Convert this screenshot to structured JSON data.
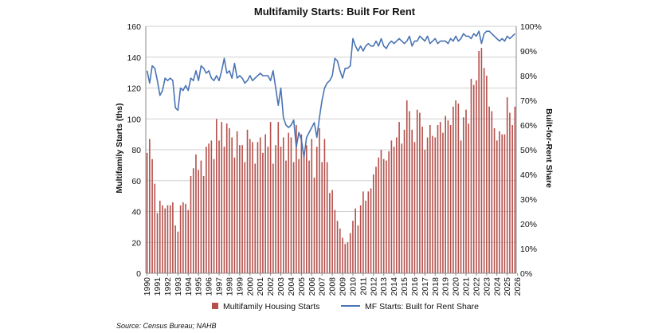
{
  "chart_data": {
    "type": "bar+line",
    "title": "Multifamily Starts: Built For Rent",
    "source": "Source: Census Bureau; NAHB",
    "ylabel": "Multifamily Starts (ths)",
    "y2label": "Built-for-Rent Share",
    "ylim": [
      0,
      160
    ],
    "yticks": [
      "0",
      "20",
      "40",
      "60",
      "80",
      "100",
      "120",
      "140",
      "160"
    ],
    "y2lim": [
      0,
      100
    ],
    "y2ticks": [
      "0%",
      "10%",
      "20%",
      "30%",
      "40%",
      "50%",
      "60%",
      "70%",
      "80%",
      "90%",
      "100%"
    ],
    "xticks": [
      "1990",
      "1991",
      "1992",
      "1993",
      "1994",
      "1995",
      "1996",
      "1997",
      "1998",
      "1999",
      "2000",
      "2001",
      "2002",
      "2003",
      "2004",
      "2005",
      "2006",
      "2007",
      "2008",
      "2009",
      "2010",
      "2011",
      "2012",
      "2013",
      "2014",
      "2015",
      "2016",
      "2017",
      "2018",
      "2019",
      "2020",
      "2021",
      "2022",
      "2023",
      "2024",
      "2025",
      "2026"
    ],
    "grid": true,
    "legend": "bottom",
    "frequency": "quarterly",
    "start": "1990",
    "colors": {
      "bars": "#b5504b",
      "line": "#4a74b4",
      "grid": "#d0d0d0"
    },
    "series": [
      {
        "name": "Multifamily Housing Starts",
        "type": "bar",
        "axis": "left",
        "values": [
          78,
          87,
          74,
          58,
          39,
          47,
          44,
          42,
          44,
          44,
          46,
          31,
          27,
          44,
          46,
          45,
          41,
          63,
          68,
          77,
          67,
          73,
          63,
          82,
          84,
          86,
          74,
          100,
          86,
          98,
          82,
          97,
          94,
          88,
          75,
          92,
          83,
          83,
          72,
          93,
          87,
          85,
          71,
          85,
          88,
          78,
          90,
          82,
          98,
          71,
          83,
          98,
          82,
          88,
          73,
          91,
          88,
          72,
          96,
          74,
          90,
          76,
          83,
          73,
          87,
          62,
          82,
          94,
          72,
          87,
          72,
          52,
          54,
          41,
          34,
          29,
          23,
          19,
          20,
          26,
          34,
          42,
          31,
          44,
          53,
          47,
          53,
          55,
          64,
          69,
          75,
          80,
          74,
          73,
          79,
          86,
          82,
          88,
          98,
          84,
          93,
          112,
          105,
          93,
          85,
          106,
          104,
          95,
          80,
          88,
          96,
          89,
          88,
          96,
          98,
          91,
          102,
          99,
          96,
          108,
          112,
          110,
          86,
          101,
          106,
          97,
          126,
          122,
          125,
          144,
          146,
          133,
          128,
          108,
          105,
          94,
          86,
          92,
          90,
          90,
          114,
          104,
          96,
          108
        ]
      },
      {
        "name": "MF Starts: Built for Rent Share",
        "type": "line",
        "axis": "right",
        "values": [
          82,
          77,
          84,
          83,
          78,
          72,
          74,
          79,
          78,
          79,
          78,
          67,
          66,
          75,
          74,
          76,
          74,
          79,
          78,
          82,
          78,
          84,
          83,
          81,
          82,
          79,
          78,
          80,
          78,
          82,
          87,
          81,
          82,
          79,
          85,
          79,
          80,
          79,
          77,
          78,
          80,
          78,
          79,
          80,
          81,
          80,
          80,
          80,
          78,
          82,
          75,
          68,
          75,
          63,
          60,
          59,
          60,
          62,
          51,
          57,
          54,
          47,
          55,
          57,
          59,
          61,
          55,
          63,
          70,
          75,
          77,
          78,
          80,
          87,
          86,
          82,
          79,
          83,
          83,
          84,
          95,
          92,
          90,
          92,
          90,
          92,
          93,
          92,
          92,
          94,
          92,
          95,
          92,
          91,
          93,
          94,
          93,
          94,
          95,
          94,
          93,
          94,
          96,
          92,
          94,
          94,
          96,
          95,
          94,
          96,
          93,
          94,
          95,
          93,
          94,
          94,
          94,
          93,
          95,
          94,
          96,
          94,
          95,
          97,
          96,
          96,
          95,
          97,
          96,
          98,
          93,
          97,
          98,
          98,
          97,
          96,
          95,
          94,
          95,
          94,
          96,
          95,
          96,
          97
        ]
      }
    ]
  }
}
